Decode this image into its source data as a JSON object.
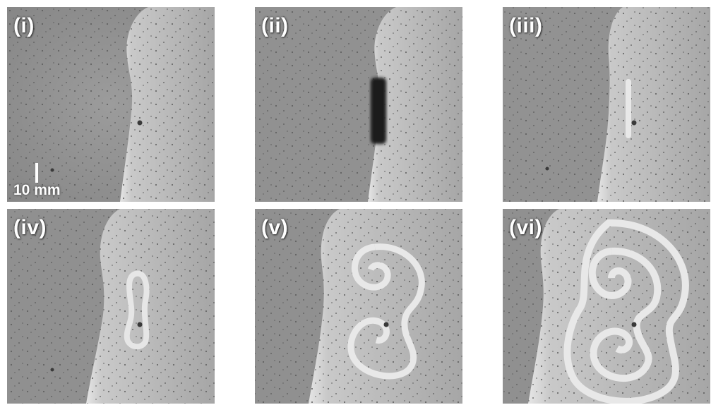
{
  "panels": [
    {
      "label": "(i)"
    },
    {
      "label": "(ii)"
    },
    {
      "label": "(iii)"
    },
    {
      "label": "(iv)"
    },
    {
      "label": "(v)"
    },
    {
      "label": "(vi)"
    }
  ],
  "scale_bar": {
    "label": "10 mm"
  },
  "colors": {
    "background_fluid": "#8f8f8f",
    "bright_front": "#d2d2d2",
    "dark_spot": "#2a2a2a",
    "label_text": "#ffffff"
  }
}
